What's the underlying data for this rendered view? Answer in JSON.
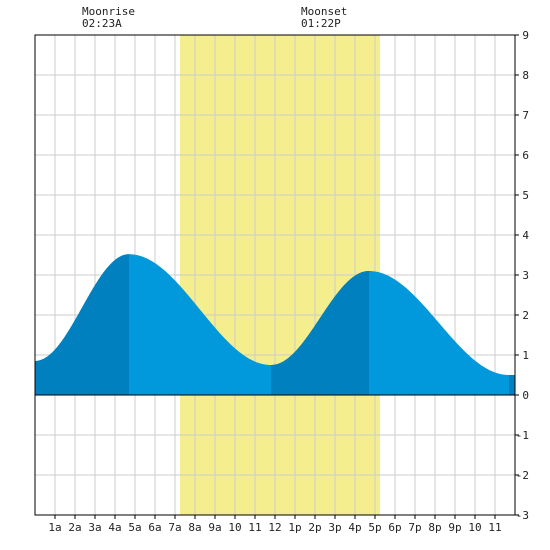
{
  "moon": {
    "rise_label": "Moonrise",
    "rise_time": "02:23A",
    "set_label": "Moonset",
    "set_time": "01:22P"
  },
  "chart_data": {
    "type": "area",
    "title": "",
    "xlabel": "",
    "ylabel": "",
    "xlim": [
      0,
      24
    ],
    "ylim": [
      -3,
      9
    ],
    "y_ticks": [
      "9",
      "8",
      "7",
      "6",
      "5",
      "4",
      "3",
      "2",
      "1",
      "0",
      "-1",
      "-2",
      "-3"
    ],
    "y_tick_values": [
      9,
      8,
      7,
      6,
      5,
      4,
      3,
      2,
      1,
      0,
      -1,
      -2,
      -3
    ],
    "x_ticks": [
      "1a",
      "2a",
      "3a",
      "4a",
      "5a",
      "6a",
      "7a",
      "8a",
      "9a",
      "10",
      "11",
      "12",
      "1p",
      "2p",
      "3p",
      "4p",
      "5p",
      "6p",
      "7p",
      "8p",
      "9p",
      "10",
      "11"
    ],
    "x_tick_values": [
      1,
      2,
      3,
      4,
      5,
      6,
      7,
      8,
      9,
      10,
      11,
      12,
      13,
      14,
      15,
      16,
      17,
      18,
      19,
      20,
      21,
      22,
      23
    ],
    "daylight": {
      "start": 7.25,
      "end": 17.25
    },
    "grid": true,
    "series": [
      {
        "points": [
          [
            0,
            0.85
          ],
          [
            4.7,
            3.52
          ],
          [
            11.8,
            0.75
          ],
          [
            16.7,
            3.1
          ],
          [
            23.7,
            0.5
          ],
          [
            24,
            0.5
          ]
        ]
      }
    ],
    "tide_bands": [
      [
        0,
        4.7
      ],
      [
        11.8,
        16.7
      ],
      [
        23.7,
        24
      ]
    ],
    "colors": {
      "daylight": "#f4ee8e",
      "tide": "#0299dc",
      "tide_band": "#0180bf",
      "grid": "#cccccc",
      "axis": "#000000"
    }
  }
}
